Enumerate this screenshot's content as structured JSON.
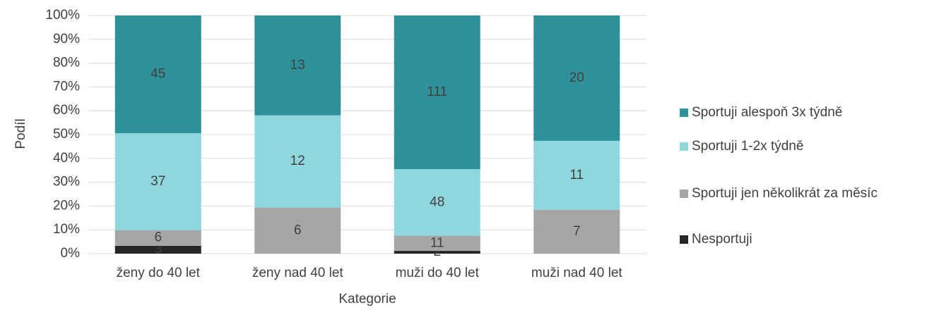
{
  "chart_data": {
    "type": "stacked_percent_bar",
    "xlabel": "Kategorie",
    "ylabel": "Podíl",
    "categories": [
      "ženy do 40 let",
      "ženy nad 40 let",
      "muži do 40 let",
      "muži nad 40 let"
    ],
    "series": [
      {
        "name": "Nesportuji",
        "color": "#262626",
        "values": [
          3,
          0,
          2,
          0
        ]
      },
      {
        "name": "Sportuji jen několikrát za měsíc",
        "color": "#a6a6a6",
        "values": [
          6,
          6,
          11,
          7
        ]
      },
      {
        "name": "Sportuji 1-2x týdně",
        "color": "#8fd7df",
        "values": [
          37,
          12,
          48,
          11
        ]
      },
      {
        "name": "Sportuji alespoň 3x týdně",
        "color": "#2e9199",
        "values": [
          45,
          13,
          111,
          20
        ]
      }
    ],
    "ylim": [
      0,
      100
    ],
    "yticks": [
      {
        "value": 0,
        "label": "0%"
      },
      {
        "value": 10,
        "label": "10%"
      },
      {
        "value": 20,
        "label": "20%"
      },
      {
        "value": 30,
        "label": "30%"
      },
      {
        "value": 40,
        "label": "40%"
      },
      {
        "value": 50,
        "label": "50%"
      },
      {
        "value": 60,
        "label": "60%"
      },
      {
        "value": 70,
        "label": "70%"
      },
      {
        "value": 80,
        "label": "80%"
      },
      {
        "value": 90,
        "label": "90%"
      },
      {
        "value": 100,
        "label": "100%"
      }
    ],
    "grid": true,
    "legend": "right"
  }
}
